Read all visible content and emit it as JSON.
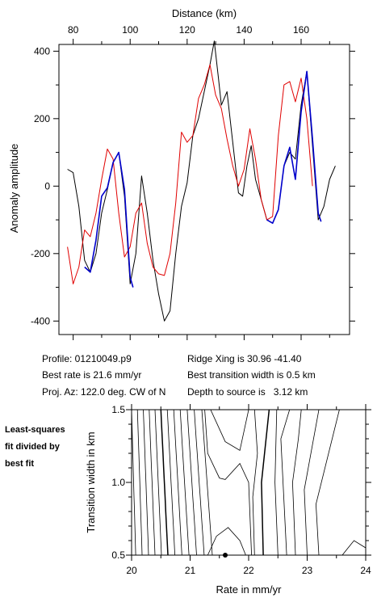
{
  "chart_data": [
    {
      "type": "line",
      "title": "",
      "xlabel": "Distance (km)",
      "ylabel": "Anomaly amplitude",
      "xlim": [
        75,
        177
      ],
      "ylim": [
        -440,
        420
      ],
      "x_ticks": [
        80,
        100,
        120,
        140,
        160
      ],
      "y_ticks": [
        400,
        200,
        0,
        -200,
        -400
      ],
      "x_axis_position": "top",
      "grid": false,
      "series": [
        {
          "color": "#000000",
          "points": [
            [
              78,
              50
            ],
            [
              80,
              40
            ],
            [
              82,
              -60
            ],
            [
              84,
              -220
            ],
            [
              86,
              -255
            ],
            [
              88,
              -200
            ],
            [
              90,
              -80
            ],
            [
              92,
              -10
            ],
            [
              94,
              70
            ],
            [
              96,
              100
            ],
            [
              98,
              -30
            ],
            [
              100,
              -290
            ],
            [
              102,
              -200
            ],
            [
              104,
              30
            ],
            [
              106,
              -80
            ],
            [
              108,
              -220
            ],
            [
              110,
              -320
            ],
            [
              112,
              -400
            ],
            [
              114,
              -370
            ],
            [
              116,
              -200
            ],
            [
              118,
              -60
            ],
            [
              120,
              10
            ],
            [
              122,
              150
            ],
            [
              124,
              200
            ],
            [
              126,
              280
            ],
            [
              128,
              360
            ],
            [
              129.5,
              430
            ],
            [
              131,
              320
            ],
            [
              132,
              240
            ],
            [
              134,
              280
            ],
            [
              136,
              130
            ],
            [
              138,
              -20
            ],
            [
              139.5,
              -30
            ],
            [
              141,
              60
            ],
            [
              142.5,
              120
            ],
            [
              144,
              20
            ],
            [
              146,
              -40
            ],
            [
              148,
              -100
            ],
            [
              150,
              -110
            ],
            [
              152,
              -70
            ],
            [
              154,
              60
            ],
            [
              156,
              100
            ],
            [
              158,
              80
            ],
            [
              160,
              240
            ],
            [
              162,
              340
            ],
            [
              164,
              120
            ],
            [
              166,
              -100
            ],
            [
              168,
              -60
            ],
            [
              170,
              20
            ],
            [
              172,
              60
            ]
          ]
        },
        {
          "color": "#e00000",
          "points": [
            [
              78,
              -180
            ],
            [
              80,
              -290
            ],
            [
              82,
              -240
            ],
            [
              84,
              -130
            ],
            [
              86,
              -150
            ],
            [
              88,
              -80
            ],
            [
              90,
              20
            ],
            [
              92,
              110
            ],
            [
              94,
              80
            ],
            [
              96,
              -80
            ],
            [
              98,
              -210
            ],
            [
              100,
              -180
            ],
            [
              102,
              -80
            ],
            [
              104,
              -50
            ],
            [
              106,
              -170
            ],
            [
              108,
              -240
            ],
            [
              110,
              -260
            ],
            [
              112,
              -265
            ],
            [
              114,
              -200
            ],
            [
              116,
              -50
            ],
            [
              118,
              160
            ],
            [
              120,
              130
            ],
            [
              122,
              150
            ],
            [
              124,
              260
            ],
            [
              126,
              300
            ],
            [
              128,
              360
            ],
            [
              130,
              270
            ],
            [
              132,
              230
            ],
            [
              134,
              140
            ],
            [
              136,
              60
            ],
            [
              138,
              0
            ],
            [
              140,
              50
            ],
            [
              142,
              170
            ],
            [
              144,
              80
            ],
            [
              146,
              -40
            ],
            [
              148,
              -100
            ],
            [
              150,
              -90
            ],
            [
              152,
              150
            ],
            [
              154,
              300
            ],
            [
              156,
              310
            ],
            [
              158,
              250
            ],
            [
              160,
              320
            ],
            [
              162,
              200
            ],
            [
              164,
              0
            ]
          ]
        },
        {
          "color": "#0000cc",
          "points": [
            [
              84,
              -240
            ],
            [
              86,
              -255
            ],
            [
              88,
              -160
            ],
            [
              90,
              -30
            ],
            [
              92,
              -5
            ],
            [
              94,
              70
            ],
            [
              96,
              100
            ],
            [
              98,
              -10
            ],
            [
              100,
              -270
            ],
            [
              101,
              -300
            ],
            [
              148,
              -100
            ],
            [
              150,
              -110
            ],
            [
              152,
              -70
            ],
            [
              154,
              60
            ],
            [
              156,
              115
            ],
            [
              158,
              20
            ],
            [
              160,
              220
            ],
            [
              162,
              340
            ],
            [
              164,
              140
            ],
            [
              166,
              -80
            ],
            [
              167,
              -105
            ]
          ]
        }
      ]
    },
    {
      "type": "contour",
      "title": "",
      "xlabel": "Rate in mm/yr",
      "ylabel": "Transition width in km",
      "xlim": [
        20,
        24
      ],
      "ylim": [
        0.5,
        1.5
      ],
      "x_ticks": [
        20,
        21,
        22,
        23,
        24
      ],
      "y_ticks": [
        0.5,
        1.0,
        1.5
      ],
      "grid": false,
      "best_fit_marker": {
        "x": 21.6,
        "y": 0.5
      }
    }
  ],
  "info": {
    "profile": "Profile: 01210049.p9",
    "ridge_xing": "Ridge Xing is 30.96 -41.40",
    "best_rate": "Best rate is 21.6 mm/yr",
    "best_transition": "Best transition width is 0.5 km",
    "proj_az": "Proj. Az: 122.0 deg. CW of N",
    "depth": "Depth to source is   3.12 km"
  },
  "side_note": [
    "Least-squares",
    "fit divided by",
    "best fit"
  ],
  "labels": {
    "top": {
      "x_ticks": [
        "80",
        "100",
        "120",
        "140",
        "160"
      ],
      "y_ticks": [
        "400",
        "200",
        "0",
        "-200",
        "-400"
      ]
    },
    "bottom": {
      "x_ticks": [
        "20",
        "21",
        "22",
        "23",
        "24"
      ],
      "y_ticks": [
        "0.5",
        "1.0",
        "1.5"
      ]
    }
  }
}
